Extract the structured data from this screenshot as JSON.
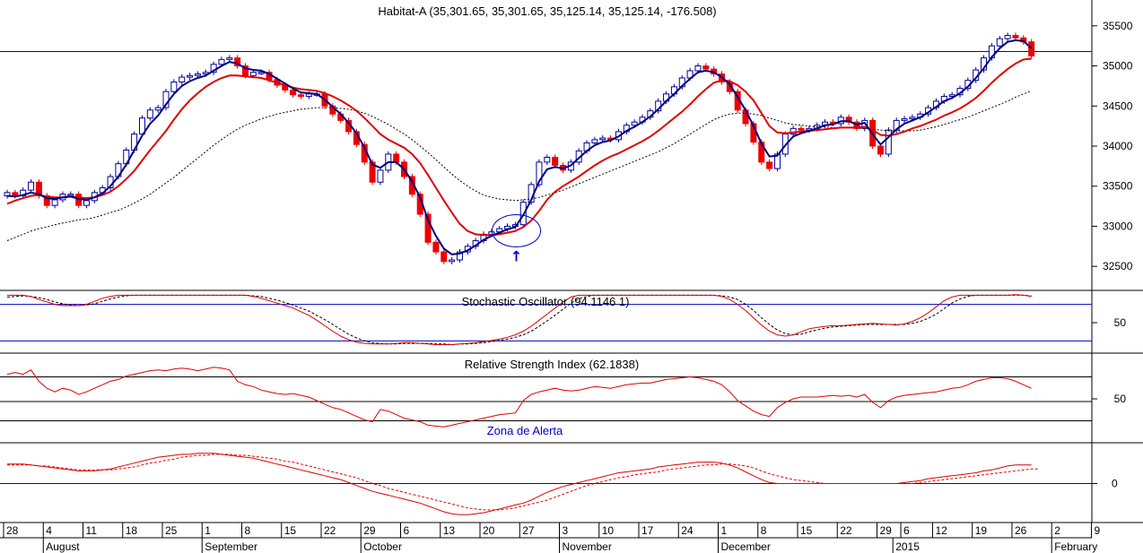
{
  "chart_data": {
    "type": "candlestick",
    "title": "Habitat-A (35,301.65, 35,301.65, 35,125.14, 35,125.14, -176.508)",
    "price_panel": {
      "ylim": [
        32200,
        35800
      ],
      "yticks": [
        32500,
        33000,
        33500,
        34000,
        34500,
        35000,
        35500
      ],
      "hline": 35180,
      "closes": [
        33420,
        33380,
        33450,
        33550,
        33380,
        33260,
        33330,
        33400,
        33400,
        33260,
        33320,
        33420,
        33480,
        33620,
        33780,
        33950,
        34150,
        34350,
        34450,
        34480,
        34680,
        34800,
        34860,
        34880,
        34900,
        34920,
        35020,
        35080,
        35100,
        35000,
        34880,
        34920,
        34920,
        34830,
        34760,
        34700,
        34640,
        34620,
        34650,
        34650,
        34500,
        34400,
        34320,
        34180,
        34020,
        33800,
        33550,
        33700,
        33900,
        33800,
        33620,
        33400,
        33150,
        32800,
        32680,
        32560,
        32580,
        32680,
        32750,
        32820,
        32900,
        32930,
        32970,
        33000,
        33020,
        33300,
        33520,
        33800,
        33860,
        33760,
        33700,
        33800,
        33940,
        34040,
        34080,
        34100,
        34080,
        34180,
        34260,
        34300,
        34360,
        34440,
        34560,
        34650,
        34740,
        34850,
        34940,
        35000,
        34960,
        34900,
        34800,
        34680,
        34450,
        34280,
        34050,
        33800,
        33720,
        33900,
        34150,
        34220,
        34200,
        34220,
        34260,
        34300,
        34280,
        34360,
        34300,
        34220,
        34320,
        34000,
        33900,
        34200,
        34320,
        34340,
        34360,
        34400,
        34480,
        34560,
        34620,
        34640,
        34720,
        34820,
        34950,
        35100,
        35250,
        35340,
        35380,
        35350,
        35300,
        35125
      ],
      "ema_fast": [
        33380,
        33370,
        33390,
        33420,
        33400,
        33350,
        33340,
        33360,
        33370,
        33340,
        33330,
        33360,
        33410,
        33500,
        33620,
        33770,
        33950,
        34130,
        34280,
        34380,
        34520,
        34650,
        34750,
        34810,
        34850,
        34880,
        34940,
        35000,
        35050,
        35030,
        34970,
        34950,
        34940,
        34900,
        34840,
        34780,
        34720,
        34670,
        34660,
        34650,
        34580,
        34490,
        34400,
        34290,
        34160,
        33980,
        33770,
        33730,
        33800,
        33800,
        33710,
        33560,
        33360,
        33080,
        32880,
        32720,
        32650,
        32660,
        32700,
        32760,
        32830,
        32880,
        32920,
        32960,
        32990,
        33140,
        33330,
        33560,
        33710,
        33740,
        33720,
        33760,
        33850,
        33940,
        34010,
        34050,
        34070,
        34120,
        34190,
        34240,
        34300,
        34370,
        34460,
        34560,
        34650,
        34750,
        34840,
        34920,
        34940,
        34920,
        34860,
        34770,
        34610,
        34450,
        34250,
        34030,
        33870,
        33880,
        34010,
        34120,
        34160,
        34190,
        34220,
        34260,
        34270,
        34310,
        34310,
        34270,
        34290,
        34150,
        34020,
        34110,
        34210,
        34280,
        34320,
        34360,
        34420,
        34490,
        34560,
        34600,
        34660,
        34740,
        34850,
        34970,
        35110,
        35220,
        35300,
        35320,
        35310,
        35220
      ],
      "ema_mid": [
        33280,
        33320,
        33350,
        33380,
        33390,
        33370,
        33360,
        33360,
        33370,
        33360,
        33350,
        33360,
        33390,
        33430,
        33500,
        33590,
        33690,
        33820,
        33950,
        34070,
        34190,
        34330,
        34460,
        34570,
        34660,
        34740,
        34800,
        34850,
        34880,
        34880,
        34870,
        34860,
        34850,
        34820,
        34790,
        34760,
        34730,
        34710,
        34700,
        34690,
        34660,
        34620,
        34570,
        34510,
        34440,
        34350,
        34250,
        34150,
        34080,
        34030,
        33980,
        33900,
        33790,
        33640,
        33480,
        33320,
        33170,
        33030,
        32940,
        32900,
        32890,
        32890,
        32900,
        32920,
        32940,
        32990,
        33070,
        33190,
        33330,
        33430,
        33500,
        33560,
        33620,
        33690,
        33760,
        33820,
        33870,
        33910,
        33960,
        34010,
        34060,
        34120,
        34190,
        34270,
        34350,
        34430,
        34520,
        34620,
        34710,
        34790,
        34820,
        34810,
        34760,
        34680,
        34570,
        34410,
        34250,
        34170,
        34160,
        34170,
        34180,
        34190,
        34200,
        34210,
        34220,
        34230,
        34230,
        34230,
        34240,
        34200,
        34140,
        34130,
        34150,
        34180,
        34220,
        34250,
        34290,
        34330,
        34380,
        34420,
        34470,
        34530,
        34600,
        34690,
        34790,
        34880,
        34960,
        35030,
        35080,
        35090
      ],
      "ema_slow": [
        32820,
        32860,
        32900,
        32940,
        32970,
        32990,
        33020,
        33040,
        33060,
        33080,
        33090,
        33110,
        33140,
        33170,
        33200,
        33240,
        33290,
        33340,
        33400,
        33470,
        33540,
        33610,
        33690,
        33770,
        33850,
        33930,
        34010,
        34080,
        34150,
        34210,
        34260,
        34300,
        34340,
        34370,
        34400,
        34420,
        34440,
        34460,
        34470,
        34480,
        34480,
        34480,
        34470,
        34460,
        34440,
        34410,
        34370,
        34320,
        34270,
        34210,
        34150,
        34080,
        34000,
        33920,
        33830,
        33740,
        33650,
        33570,
        33500,
        33440,
        33390,
        33360,
        33340,
        33330,
        33320,
        33330,
        33340,
        33360,
        33390,
        33420,
        33450,
        33490,
        33530,
        33570,
        33610,
        33650,
        33690,
        33730,
        33770,
        33810,
        33850,
        33890,
        33930,
        33980,
        34030,
        34090,
        34150,
        34210,
        34270,
        34330,
        34370,
        34400,
        34410,
        34410,
        34400,
        34380,
        34350,
        34320,
        34290,
        34270,
        34260,
        34250,
        34240,
        34240,
        34230,
        34230,
        34230,
        34220,
        34220,
        34210,
        34200,
        34190,
        34190,
        34190,
        34190,
        34200,
        34220,
        34240,
        34270,
        34300,
        34330,
        34360,
        34400,
        34440,
        34480,
        34520,
        34560,
        34610,
        34650,
        34690
      ],
      "highlight_marker": {
        "index": 63,
        "label": "↑"
      }
    },
    "stochastic_panel": {
      "title": "Stochastic Oscillator (94.1146 1)",
      "ylim": [
        0,
        100
      ],
      "yticks": [
        50
      ],
      "hlines": [
        80,
        20
      ],
      "k": [
        95,
        95,
        95,
        93,
        88,
        84,
        80,
        78,
        78,
        78,
        80,
        85,
        90,
        93,
        95,
        95,
        95,
        95,
        95,
        95,
        95,
        95,
        95,
        95,
        95,
        95,
        95,
        95,
        95,
        95,
        95,
        93,
        90,
        86,
        82,
        78,
        74,
        68,
        62,
        54,
        45,
        36,
        28,
        22,
        18,
        16,
        15,
        15,
        15,
        16,
        17,
        17,
        16,
        15,
        14,
        14,
        14,
        15,
        16,
        17,
        19,
        21,
        23,
        26,
        30,
        36,
        44,
        54,
        64,
        74,
        84,
        92,
        95,
        95,
        95,
        95,
        95,
        95,
        95,
        95,
        95,
        95,
        95,
        95,
        95,
        95,
        95,
        95,
        95,
        95,
        93,
        88,
        80,
        70,
        58,
        46,
        36,
        30,
        28,
        30,
        35,
        40,
        42,
        44,
        45,
        45,
        46,
        47,
        48,
        49,
        48,
        47,
        46,
        48,
        52,
        58,
        66,
        76,
        86,
        92,
        95,
        95,
        95,
        95,
        95,
        95,
        95,
        96,
        95,
        93
      ],
      "d": [
        92,
        93,
        94,
        93,
        91,
        88,
        84,
        81,
        79,
        78,
        79,
        81,
        85,
        89,
        92,
        94,
        95,
        95,
        95,
        95,
        95,
        95,
        95,
        95,
        95,
        95,
        95,
        95,
        95,
        95,
        95,
        94,
        93,
        90,
        87,
        83,
        79,
        74,
        69,
        62,
        55,
        47,
        39,
        31,
        25,
        20,
        17,
        16,
        15,
        15,
        16,
        16,
        16,
        16,
        15,
        15,
        14,
        15,
        15,
        16,
        17,
        19,
        21,
        23,
        26,
        30,
        36,
        44,
        53,
        62,
        72,
        82,
        89,
        93,
        95,
        95,
        95,
        95,
        95,
        95,
        95,
        95,
        95,
        95,
        95,
        95,
        95,
        95,
        95,
        95,
        94,
        92,
        88,
        80,
        70,
        58,
        47,
        38,
        32,
        30,
        31,
        35,
        38,
        41,
        43,
        44,
        45,
        46,
        47,
        47,
        47,
        47,
        47,
        47,
        49,
        52,
        57,
        64,
        73,
        82,
        89,
        93,
        95,
        95,
        95,
        95,
        95,
        95,
        95,
        94
      ]
    },
    "rsi_panel": {
      "title": "Relative Strength Index (62.1838)",
      "ylim": [
        0,
        100
      ],
      "yticks": [
        50
      ],
      "hlines": [
        75,
        25
      ],
      "annotation": "Zona de Alerta",
      "values": [
        78,
        80,
        78,
        83,
        70,
        62,
        58,
        62,
        60,
        55,
        58,
        62,
        66,
        70,
        72,
        76,
        78,
        80,
        82,
        83,
        82,
        84,
        85,
        84,
        82,
        84,
        86,
        85,
        83,
        70,
        66,
        64,
        60,
        58,
        56,
        55,
        56,
        54,
        52,
        48,
        44,
        40,
        38,
        34,
        30,
        26,
        24,
        38,
        36,
        32,
        28,
        26,
        24,
        20,
        19,
        18,
        20,
        22,
        24,
        26,
        28,
        30,
        32,
        33,
        34,
        48,
        55,
        58,
        60,
        62,
        60,
        59,
        60,
        62,
        64,
        63,
        62,
        64,
        66,
        67,
        68,
        68,
        70,
        72,
        73,
        74,
        75,
        74,
        72,
        70,
        66,
        58,
        48,
        42,
        36,
        32,
        30,
        40,
        46,
        50,
        52,
        52,
        52,
        53,
        54,
        53,
        54,
        52,
        55,
        46,
        40,
        48,
        52,
        54,
        55,
        56,
        57,
        58,
        60,
        62,
        63,
        66,
        70,
        72,
        74,
        74,
        73,
        70,
        66,
        62
      ]
    },
    "macd_panel": {
      "ylim": [
        -40,
        40
      ],
      "yticks": [
        0
      ],
      "hlines": [
        0
      ],
      "macd": [
        20,
        20,
        20,
        19,
        18,
        17,
        16,
        15,
        14,
        13,
        13,
        13,
        14,
        15,
        17,
        19,
        21,
        23,
        25,
        27,
        28,
        29,
        30,
        30,
        31,
        31,
        31,
        30,
        29,
        28,
        27,
        26,
        24,
        22,
        20,
        18,
        16,
        14,
        12,
        10,
        8,
        6,
        4,
        1,
        -2,
        -5,
        -8,
        -10,
        -12,
        -14,
        -16,
        -18,
        -20,
        -23,
        -26,
        -29,
        -31,
        -32,
        -32,
        -31,
        -30,
        -28,
        -26,
        -24,
        -22,
        -20,
        -17,
        -13,
        -9,
        -6,
        -3,
        -1,
        1,
        3,
        5,
        7,
        9,
        11,
        12,
        13,
        14,
        15,
        17,
        18,
        19,
        20,
        21,
        22,
        22,
        22,
        21,
        19,
        16,
        12,
        8,
        4,
        1,
        0,
        0,
        0,
        0,
        0,
        0,
        0,
        0,
        0,
        0,
        0,
        0,
        0,
        0,
        0,
        0,
        1,
        2,
        3,
        5,
        6,
        7,
        8,
        9,
        10,
        11,
        13,
        14,
        16,
        18,
        19,
        19,
        19
      ],
      "signal": [
        19,
        19,
        19,
        19,
        18,
        18,
        17,
        16,
        15,
        14,
        14,
        14,
        14,
        14,
        15,
        16,
        17,
        19,
        21,
        22,
        24,
        25,
        27,
        28,
        29,
        29,
        30,
        30,
        30,
        29,
        29,
        28,
        27,
        26,
        25,
        23,
        22,
        20,
        18,
        16,
        14,
        12,
        10,
        8,
        6,
        3,
        0,
        -2,
        -5,
        -7,
        -9,
        -11,
        -13,
        -15,
        -17,
        -19,
        -21,
        -23,
        -25,
        -26,
        -27,
        -27,
        -27,
        -26,
        -25,
        -23,
        -21,
        -19,
        -17,
        -14,
        -11,
        -8,
        -5,
        -2,
        0,
        2,
        4,
        6,
        7,
        9,
        10,
        11,
        12,
        14,
        15,
        16,
        17,
        18,
        19,
        19,
        20,
        20,
        19,
        18,
        16,
        13,
        10,
        8,
        6,
        4,
        3,
        2,
        1,
        0,
        0,
        0,
        0,
        0,
        0,
        0,
        0,
        0,
        0,
        0,
        0,
        1,
        2,
        3,
        4,
        5,
        6,
        7,
        8,
        9,
        10,
        11,
        12,
        13,
        14,
        15,
        15
      ]
    },
    "x_axis": {
      "day_ticks": [
        {
          "label": "28",
          "i": 0
        },
        {
          "label": "4",
          "i": 5
        },
        {
          "label": "11",
          "i": 10
        },
        {
          "label": "18",
          "i": 15
        },
        {
          "label": "25",
          "i": 20
        },
        {
          "label": "1",
          "i": 25
        },
        {
          "label": "8",
          "i": 30
        },
        {
          "label": "15",
          "i": 35
        },
        {
          "label": "22",
          "i": 40
        },
        {
          "label": "29",
          "i": 45
        },
        {
          "label": "6",
          "i": 50
        },
        {
          "label": "13",
          "i": 55
        },
        {
          "label": "20",
          "i": 60
        },
        {
          "label": "27",
          "i": 65
        },
        {
          "label": "3",
          "i": 70
        },
        {
          "label": "10",
          "i": 75
        },
        {
          "label": "17",
          "i": 80
        },
        {
          "label": "24",
          "i": 85
        },
        {
          "label": "1",
          "i": 90
        },
        {
          "label": "8",
          "i": 95
        },
        {
          "label": "15",
          "i": 100
        },
        {
          "label": "22",
          "i": 105
        },
        {
          "label": "29",
          "i": 110
        },
        {
          "label": "6",
          "i": 113
        },
        {
          "label": "12",
          "i": 117
        },
        {
          "label": "19",
          "i": 122
        },
        {
          "label": "26",
          "i": 127
        },
        {
          "label": "2",
          "i": 132
        },
        {
          "label": "9",
          "i": 137
        }
      ],
      "month_ticks": [
        {
          "label": "August",
          "i": 5
        },
        {
          "label": "September",
          "i": 25
        },
        {
          "label": "October",
          "i": 45
        },
        {
          "label": "November",
          "i": 70
        },
        {
          "label": "December",
          "i": 90
        },
        {
          "label": "2015",
          "i": 112
        },
        {
          "label": "February",
          "i": 132
        }
      ]
    }
  }
}
